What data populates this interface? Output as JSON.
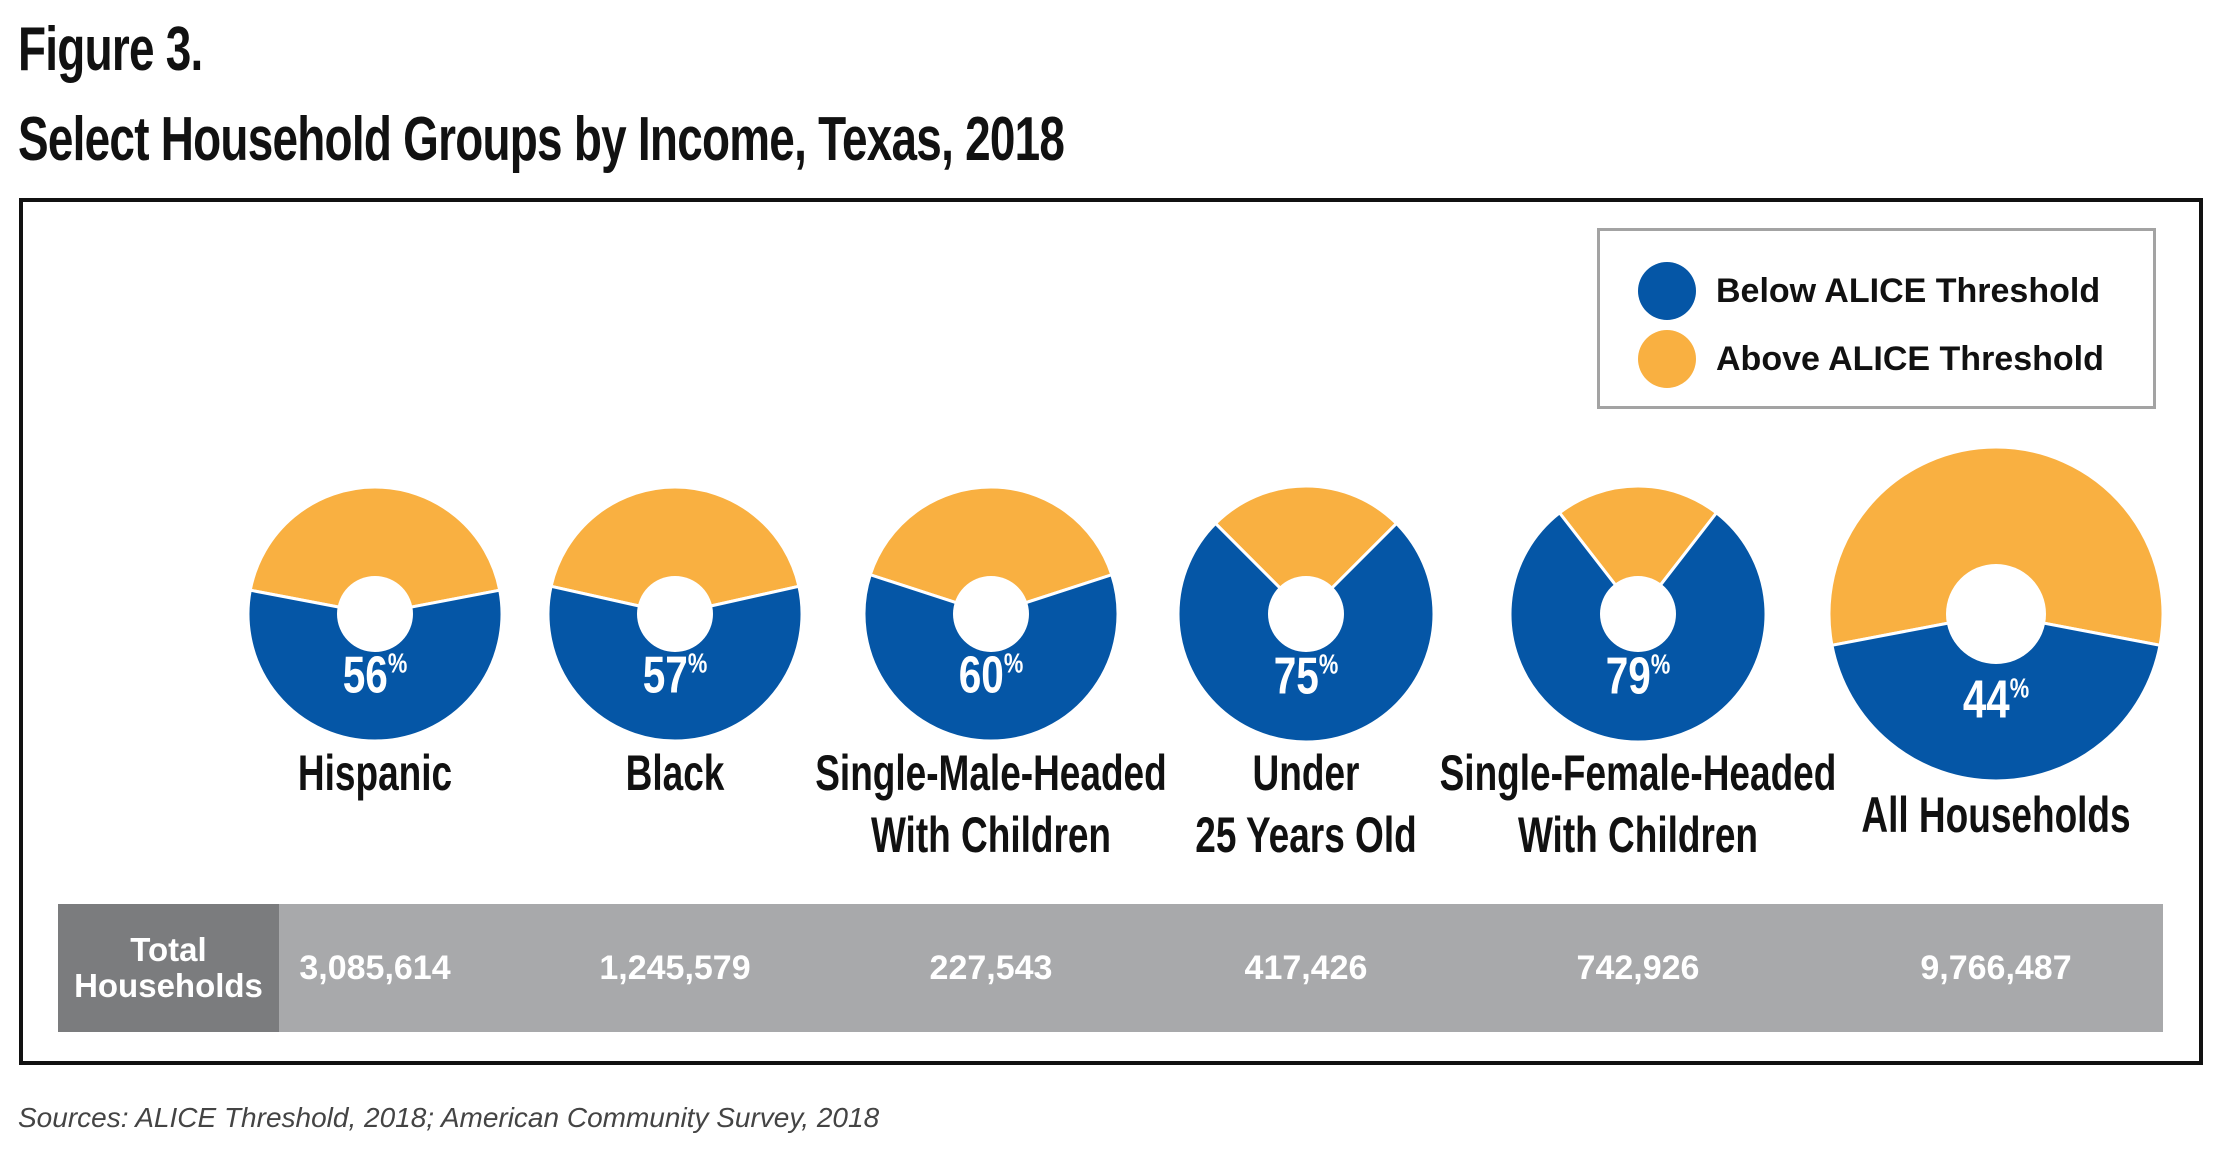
{
  "figure_label": "Figure 3.",
  "title": "Select Household Groups by Income, Texas, 2018",
  "legend": {
    "below_label": "Below ALICE Threshold",
    "above_label": "Above ALICE Threshold"
  },
  "colors": {
    "below": "#0556a6",
    "above": "#f9b041",
    "table_bg": "#a8a9ab",
    "table_header_bg": "#7b7c7e"
  },
  "chart_data": {
    "type": "pie",
    "series": [
      {
        "name": "Below ALICE Threshold"
      },
      {
        "name": "Above ALICE Threshold"
      }
    ],
    "groups": [
      {
        "label_lines": [
          "Hispanic"
        ],
        "below_pct": 56,
        "total_households": "3,085,614"
      },
      {
        "label_lines": [
          "Black"
        ],
        "below_pct": 57,
        "total_households": "1,245,579"
      },
      {
        "label_lines": [
          "Single-Male-Headed",
          "With Children"
        ],
        "below_pct": 60,
        "total_households": "227,543"
      },
      {
        "label_lines": [
          "Under",
          "25 Years Old"
        ],
        "below_pct": 75,
        "total_households": "417,426"
      },
      {
        "label_lines": [
          "Single-Female-Headed",
          "With Children"
        ],
        "below_pct": 79,
        "total_households": "742,926"
      },
      {
        "label_lines": [
          "All Households"
        ],
        "below_pct": 44,
        "total_households": "9,766,487"
      }
    ]
  },
  "table": {
    "header": "Total Households"
  },
  "source": "Sources: ALICE Threshold, 2018; American Community Survey, 2018"
}
